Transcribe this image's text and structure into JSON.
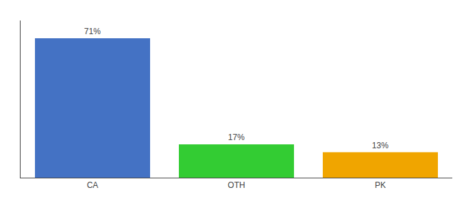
{
  "chart_data": {
    "type": "bar",
    "categories": [
      "CA",
      "OTH",
      "PK"
    ],
    "values": [
      71,
      17,
      13
    ],
    "value_labels": [
      "71%",
      "17%",
      "13%"
    ],
    "colors": [
      "#4472c4",
      "#33cc33",
      "#f0a500"
    ],
    "ylim": [
      0,
      80
    ],
    "grid": false,
    "data_labels": true,
    "tick_labels": "x"
  }
}
